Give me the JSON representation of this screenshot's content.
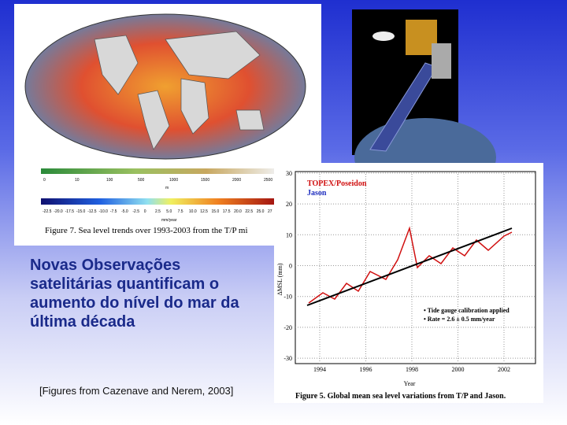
{
  "slide": {
    "body_text": "Novas Observações satelitárias quantificam o aumento do nível do mar da última década",
    "citation": "[Figures from Cazenave and Nerem, 2003]",
    "figure7": {
      "caption": "Figure 7. Sea level trends over 1993-2003 from the T/P mi",
      "depth_ticks": [
        "0",
        "10",
        "100",
        "500",
        "1000",
        "1500",
        "2000",
        "2500"
      ],
      "depth_unit": "m",
      "trend_ticks": [
        "-22.5",
        "-20.0",
        "-17.5",
        "-15.0",
        "-12.5",
        "-10.0",
        "-7.5",
        "-5.0",
        "-2.5",
        "0",
        "2.5",
        "5.0",
        "7.5",
        "10.0",
        "12.5",
        "15.0",
        "17.5",
        "20.0",
        "22.5",
        "25.0",
        "27"
      ],
      "trend_unit": "mm/year"
    },
    "figure5": {
      "series_1": "TOPEX/Poseidon",
      "series_2": "Jason",
      "yticks": [
        30,
        20,
        10,
        0,
        -10,
        -20,
        -30
      ],
      "xticks": [
        1994,
        1996,
        1998,
        2000,
        2002
      ],
      "ylabel": "ΔMSL (mm)",
      "xlabel": "Year",
      "note_1": "• Tide gauge calibration applied",
      "note_2": "• Rate = 2.6 ± 0.5 mm/year",
      "caption": "Figure 5. Global mean sea level variations from T/P and Jason."
    }
  }
}
